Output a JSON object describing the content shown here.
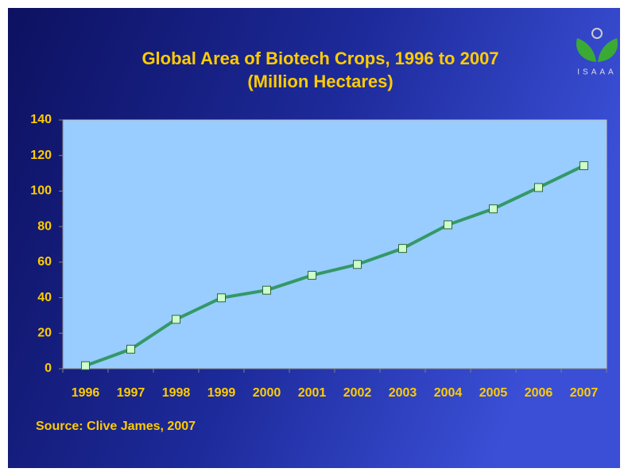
{
  "chart_data": {
    "type": "line",
    "title": "Global Area of Biotech Crops, 1996 to 2007",
    "subtitle": "(Million Hectares)",
    "source": "Source: Clive James, 2007",
    "logo": "ISAAA",
    "categories": [
      "1996",
      "1997",
      "1998",
      "1999",
      "2000",
      "2001",
      "2002",
      "2003",
      "2004",
      "2005",
      "2006",
      "2007"
    ],
    "series": [
      {
        "name": "Global Area",
        "color": "#339966",
        "values": [
          1.7,
          11,
          27.8,
          39.9,
          44.2,
          52.6,
          58.7,
          67.7,
          81,
          90,
          102,
          114.3
        ]
      }
    ],
    "ylim": [
      0,
      140
    ],
    "yticks": [
      0,
      20,
      40,
      60,
      80,
      100,
      120,
      140
    ],
    "grid": false
  }
}
